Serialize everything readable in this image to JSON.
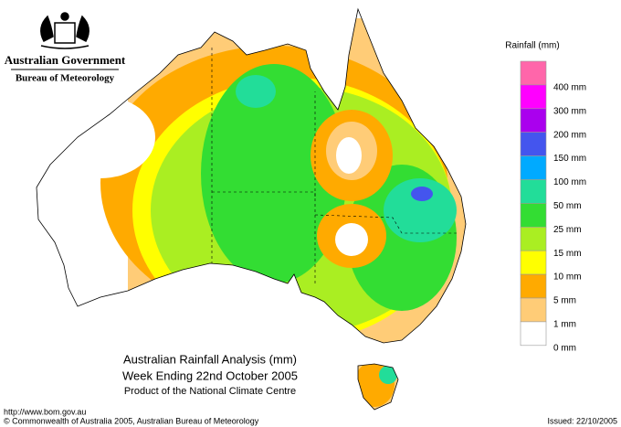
{
  "header": {
    "government": "Australian Government",
    "bureau": "Bureau of Meteorology"
  },
  "legend": {
    "title": "Rainfall (mm)",
    "items": [
      {
        "label": "400 mm",
        "color": "#ff66aa"
      },
      {
        "label": "300 mm",
        "color": "#ff00ff"
      },
      {
        "label": "200 mm",
        "color": "#aa00ee"
      },
      {
        "label": "150 mm",
        "color": "#4455ee"
      },
      {
        "label": "100 mm",
        "color": "#00aaff"
      },
      {
        "label": "50 mm",
        "color": "#22dd99"
      },
      {
        "label": "25 mm",
        "color": "#33dd33"
      },
      {
        "label": "15 mm",
        "color": "#aaee22"
      },
      {
        "label": "10 mm",
        "color": "#ffff00"
      },
      {
        "label": "5 mm",
        "color": "#ffaa00"
      },
      {
        "label": "1 mm",
        "color": "#ffcc77"
      },
      {
        "label": "0 mm",
        "color": "#ffffff"
      }
    ]
  },
  "caption": {
    "title": "Australian Rainfall Analysis (mm)",
    "subtitle": "Week Ending 22nd October 2005",
    "credit": "Product of the National Climate Centre"
  },
  "footer": {
    "url": "http://www.bom.gov.au",
    "copyright": "© Commonwealth of Australia 2005, Australian Bureau of Meteorology",
    "issued": "Issued: 22/10/2005"
  }
}
